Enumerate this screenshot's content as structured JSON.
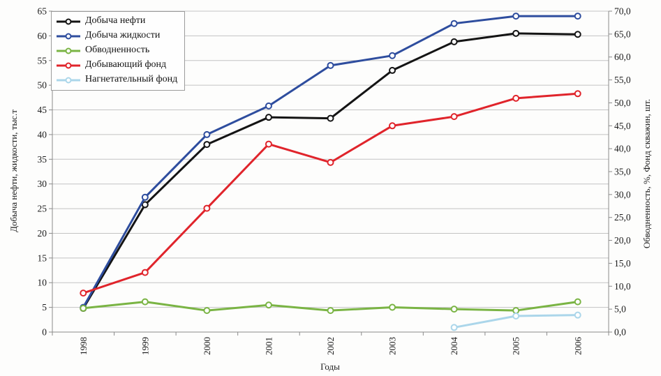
{
  "chart_data": {
    "type": "line",
    "title": "",
    "xlabel": "Годы",
    "x_categories": [
      "1998",
      "1999",
      "2000",
      "2001",
      "2002",
      "2003",
      "2004",
      "2005",
      "2006"
    ],
    "axes": {
      "left": {
        "label": "Добыча нефти, жидкости, тыс.т",
        "min": 0,
        "max": 65,
        "tick_step": 5,
        "tick_labels": [
          "0",
          "5",
          "10",
          "15",
          "20",
          "25",
          "30",
          "35",
          "40",
          "45",
          "50",
          "55",
          "60",
          "65"
        ]
      },
      "right": {
        "label": "Обводненность, %, Фонд скважин, шт.",
        "min": 0,
        "max": 70,
        "tick_step": 5,
        "tick_labels": [
          "0,0",
          "5,0",
          "10,0",
          "15,0",
          "20,0",
          "25,0",
          "30,0",
          "35,0",
          "40,0",
          "45,0",
          "50,0",
          "55,0",
          "60,0",
          "65,0",
          "70,0"
        ]
      }
    },
    "grid": {
      "horizontal": true,
      "vertical": false,
      "gridline_axis": "left"
    },
    "legend": {
      "position": "top-left-inside"
    },
    "series": [
      {
        "name": "Добыча нефти",
        "axis": "left",
        "color": "#141414",
        "values": [
          4.8,
          25.8,
          38.0,
          43.5,
          43.3,
          53.0,
          58.8,
          60.5,
          60.3
        ]
      },
      {
        "name": "Добыча жидкости",
        "axis": "left",
        "color": "#2e4d9e",
        "values": [
          5.0,
          27.3,
          40.0,
          45.8,
          54.0,
          56.0,
          62.5,
          64.0,
          64.0
        ]
      },
      {
        "name": "Обводненность",
        "axis": "right",
        "color": "#7ab444",
        "values": [
          5.2,
          6.6,
          4.7,
          5.9,
          4.7,
          5.4,
          5.0,
          4.7,
          6.6
        ]
      },
      {
        "name": "Добывающий фонд",
        "axis": "right",
        "color": "#e0242b",
        "values": [
          8.5,
          13.0,
          27.0,
          41.0,
          37.0,
          45.0,
          47.0,
          51.0,
          52.0
        ]
      },
      {
        "name": "Нагнетательный фонд",
        "axis": "right",
        "color": "#abd6ea",
        "values": [
          null,
          null,
          null,
          null,
          null,
          null,
          1.0,
          3.5,
          3.7
        ]
      }
    ],
    "colors": {
      "gridline": "#c3c3c3",
      "axis_line": "#8a8a8a",
      "tick_text": "#1a1a1a",
      "marker_fill": "#ffffff"
    }
  }
}
